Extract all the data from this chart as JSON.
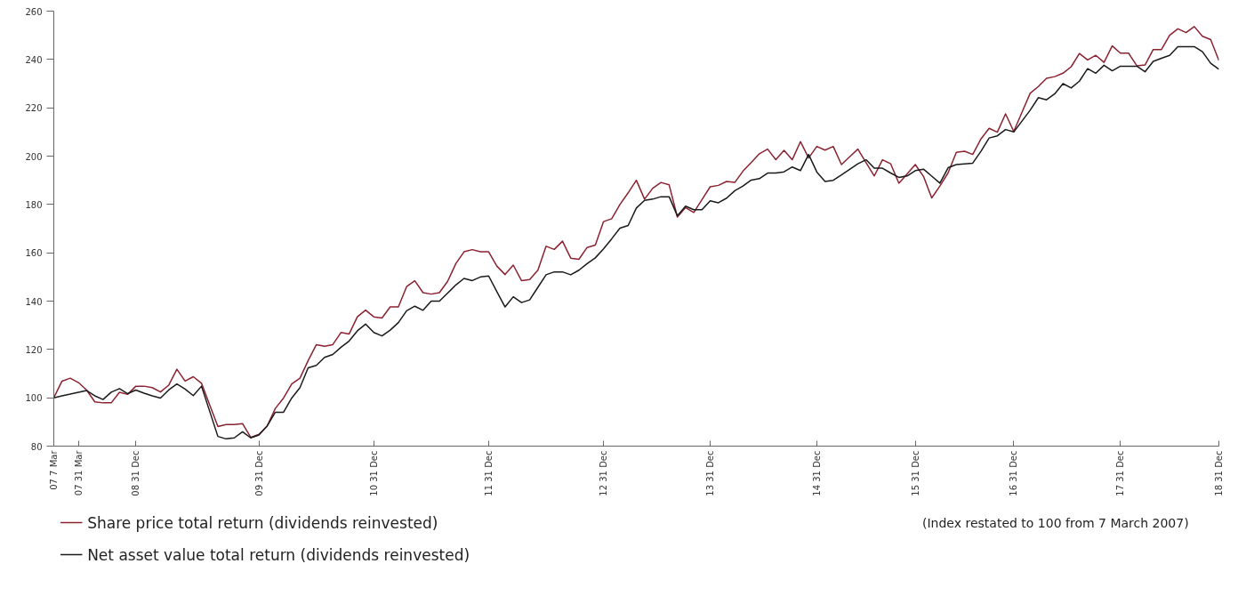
{
  "chart_data": {
    "type": "line",
    "categories": [
      "07 7 Mar",
      null,
      null,
      "07 31 Mar",
      null,
      null,
      null,
      null,
      null,
      null,
      "08 31 Dec",
      null,
      null,
      null,
      null,
      null,
      null,
      null,
      null,
      null,
      null,
      null,
      null,
      null,
      null,
      "09 31 Dec",
      null,
      null,
      null,
      null,
      null,
      null,
      null,
      null,
      null,
      null,
      null,
      null,
      null,
      "10 31 Dec",
      null,
      null,
      null,
      null,
      null,
      null,
      null,
      null,
      null,
      null,
      null,
      null,
      null,
      "11 31 Dec",
      null,
      null,
      null,
      null,
      null,
      null,
      null,
      null,
      null,
      null,
      null,
      null,
      null,
      "12 31 Dec",
      null,
      null,
      null,
      null,
      null,
      null,
      null,
      null,
      null,
      null,
      null,
      null,
      "13 31 Dec",
      null,
      null,
      null,
      null,
      null,
      null,
      null,
      null,
      null,
      null,
      null,
      null,
      "14 31 Dec",
      null,
      null,
      null,
      null,
      null,
      null,
      null,
      null,
      null,
      null,
      null,
      "15 31 Dec",
      null,
      null,
      null,
      null,
      null,
      null,
      null,
      null,
      null,
      null,
      null,
      "16 31 Dec",
      null,
      null,
      null,
      null,
      null,
      null,
      null,
      null,
      null,
      null,
      null,
      null,
      "17 31 Dec",
      null,
      null,
      null,
      null,
      null,
      null,
      null,
      null,
      null,
      null,
      null,
      "18 31 Dec"
    ],
    "ylim": [
      80,
      260
    ],
    "yticks": [
      80,
      100,
      120,
      140,
      160,
      180,
      200,
      220,
      240,
      260
    ],
    "grid": false,
    "legend": "bottom left",
    "marker": "none",
    "line_style": "solid",
    "annotations": [
      "(Index restated to 100 from 7 March 2007)"
    ],
    "series": [
      {
        "name": "Share price total return (dividends reinvested)",
        "color": "#8b2230",
        "values": [
          100,
          106.9,
          108.1,
          106.3,
          103.2,
          98.3,
          97.9,
          97.9,
          102.3,
          101.4,
          104.8,
          104.8,
          104.2,
          102.4,
          105.2,
          111.8,
          106.9,
          108.7,
          106.0,
          97.0,
          88.1,
          88.9,
          88.9,
          89.3,
          83.6,
          84.9,
          88.3,
          95.6,
          99.9,
          105.7,
          108.1,
          115.4,
          122.0,
          121.3,
          122.0,
          127.0,
          126.4,
          133.5,
          136.3,
          133.5,
          133.0,
          137.6,
          137.6,
          146.0,
          148.4,
          143.5,
          142.9,
          143.5,
          148.2,
          155.5,
          160.4,
          161.3,
          160.4,
          160.4,
          154.5,
          151.0,
          154.9,
          148.5,
          148.9,
          152.8,
          162.7,
          161.4,
          164.8,
          157.8,
          157.3,
          162.2,
          163.2,
          172.9,
          174.1,
          180.0,
          184.8,
          190.0,
          182.2,
          186.7,
          189.1,
          188.1,
          174.8,
          178.7,
          176.7,
          182.0,
          187.3,
          187.9,
          189.5,
          189.1,
          193.8,
          197.3,
          201.0,
          202.9,
          198.5,
          202.4,
          198.5,
          206.0,
          199.2,
          204.0,
          202.5,
          204.0,
          196.5,
          199.7,
          202.9,
          197.3,
          191.8,
          198.5,
          196.8,
          188.8,
          192.6,
          196.5,
          191.6,
          182.7,
          187.6,
          193.1,
          201.6,
          202.0,
          200.7,
          207.1,
          211.5,
          209.9,
          217.5,
          210.2,
          218.1,
          226.0,
          228.8,
          232.2,
          232.9,
          234.3,
          237.0,
          242.5,
          239.8,
          241.7,
          238.8,
          245.6,
          242.6,
          242.6,
          237.4,
          237.7,
          244.1,
          244.1,
          250.0,
          252.7,
          251.1,
          253.6,
          249.6,
          248.2,
          239.6
        ]
      },
      {
        "name": "Net asset value total return (dividends reinvested)",
        "color": "#1a1a1a",
        "values": [
          100,
          100.8,
          101.5,
          102.3,
          103.0,
          100.8,
          99.3,
          102.3,
          103.8,
          101.7,
          103.2,
          101.9,
          100.8,
          99.9,
          103.2,
          105.7,
          103.6,
          100.9,
          104.8,
          94.4,
          84.0,
          83.0,
          83.4,
          85.9,
          83.4,
          84.6,
          88.3,
          94.0,
          94.0,
          99.9,
          104.2,
          112.4,
          113.4,
          116.7,
          117.9,
          120.9,
          123.5,
          127.7,
          130.5,
          127.0,
          125.6,
          128.0,
          131.1,
          136.0,
          137.9,
          136.2,
          140.0,
          140.0,
          143.3,
          146.7,
          149.4,
          148.5,
          150.0,
          150.4,
          143.9,
          137.6,
          141.8,
          139.4,
          140.5,
          145.7,
          150.9,
          152.1,
          152.1,
          150.9,
          152.8,
          155.5,
          157.9,
          161.6,
          165.8,
          170.2,
          171.3,
          178.5,
          181.7,
          182.2,
          183.2,
          183.2,
          175.3,
          179.3,
          177.8,
          177.8,
          181.5,
          180.7,
          182.6,
          185.7,
          187.6,
          190.1,
          190.7,
          193.0,
          193.0,
          193.5,
          195.5,
          194.0,
          200.7,
          193.4,
          189.5,
          190.0,
          192.2,
          194.5,
          196.8,
          198.5,
          195.0,
          195.0,
          193.0,
          191.2,
          191.8,
          194.0,
          194.6,
          191.7,
          188.8,
          195.2,
          196.5,
          196.8,
          197.1,
          202.0,
          207.5,
          208.4,
          211.0,
          210.0,
          214.5,
          219.0,
          224.2,
          223.3,
          225.8,
          230.0,
          228.2,
          231.0,
          236.2,
          234.3,
          237.6,
          235.3,
          237.2,
          237.2,
          237.2,
          234.9,
          239.2,
          240.5,
          241.7,
          245.3,
          245.3,
          245.3,
          243.2,
          238.4,
          235.9
        ]
      }
    ]
  }
}
